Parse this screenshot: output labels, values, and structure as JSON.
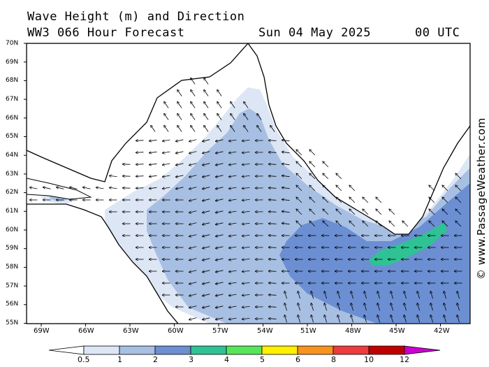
{
  "header": {
    "title": "Wave Height (m) and Direction",
    "model": "WW3 066 Hour Forecast",
    "date": "Sun 04 May 2025",
    "time": "00 UTC"
  },
  "credit": "© www.PassageWeather.com",
  "map": {
    "lat_labels": [
      "70N",
      "69N",
      "68N",
      "67N",
      "66N",
      "65N",
      "64N",
      "63N",
      "62N",
      "61N",
      "60N",
      "59N",
      "58N",
      "57N",
      "56N",
      "55N"
    ],
    "lon_labels": [
      "69W",
      "66W",
      "63W",
      "60W",
      "57W",
      "54W",
      "51W",
      "48W",
      "45W",
      "42W"
    ]
  },
  "colorbar": {
    "labels": [
      "0.5",
      "1",
      "2",
      "3",
      "4",
      "5",
      "6",
      "8",
      "10",
      "12"
    ],
    "colors": [
      "#ffffff",
      "#dde6f5",
      "#a7bfe2",
      "#6b8fd2",
      "#2fc294",
      "#57e65a",
      "#ffef00",
      "#f7931e",
      "#ec3c3c",
      "#bf0000",
      "#cc00cc"
    ]
  }
}
